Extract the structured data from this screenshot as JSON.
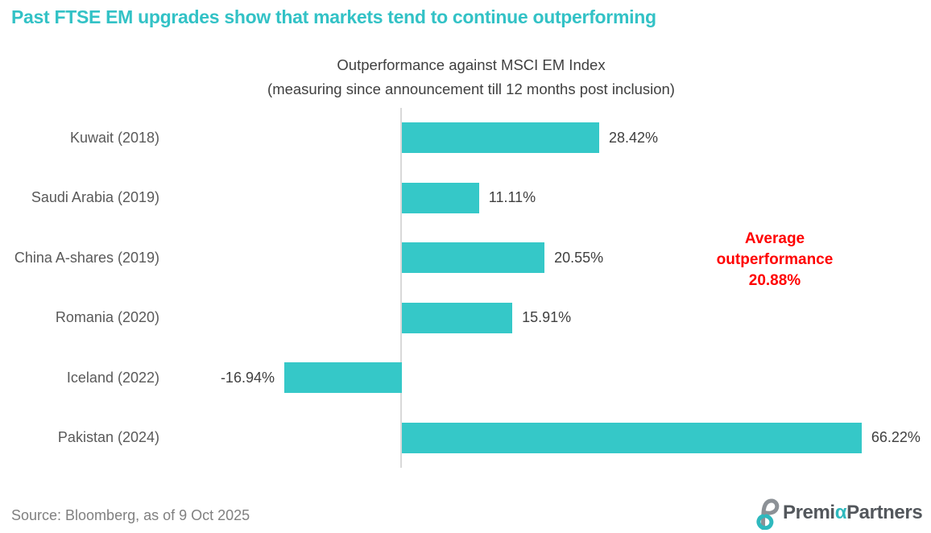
{
  "title": {
    "text": "Past FTSE EM upgrades show that markets tend to continue outperforming"
  },
  "subtitle": {
    "line1": "Outperformance against MSCI EM Index",
    "line2": "(measuring since announcement till 12 months post inclusion)"
  },
  "chart_data": {
    "type": "bar",
    "orientation": "horizontal",
    "categories": [
      "Kuwait (2018)",
      "Saudi Arabia (2019)",
      "China A-shares (2019)",
      "Romania (2020)",
      "Iceland (2022)",
      "Pakistan (2024)"
    ],
    "values": [
      28.42,
      11.11,
      20.55,
      15.91,
      -16.94,
      66.22
    ],
    "value_labels": [
      "28.42%",
      "11.11%",
      "20.55%",
      "15.91%",
      "-16.94%",
      "66.22%"
    ],
    "title": "Outperformance against MSCI EM Index (measuring since announcement till 12 months post inclusion)",
    "xlabel": "",
    "ylabel": "",
    "xlim": [
      -20,
      70
    ],
    "grid": false,
    "legend": "none"
  },
  "annotation": {
    "lines": [
      "Average",
      "outperformance",
      "20.88%"
    ]
  },
  "footer": {
    "source": "Source: Bloomberg, as of 9 Oct 2025",
    "logo": {
      "part1": "Premi",
      "alpha": "α",
      "part2": "Partners"
    }
  },
  "colors": {
    "bar": "#35C8C8",
    "title": "#33C2C6",
    "annotation": "#FF0000",
    "axis": "#D9D9D9",
    "category_text": "#595959",
    "value_text": "#404040",
    "logo_teal": "#2FB9BE",
    "logo_gray": "#8C9196"
  }
}
